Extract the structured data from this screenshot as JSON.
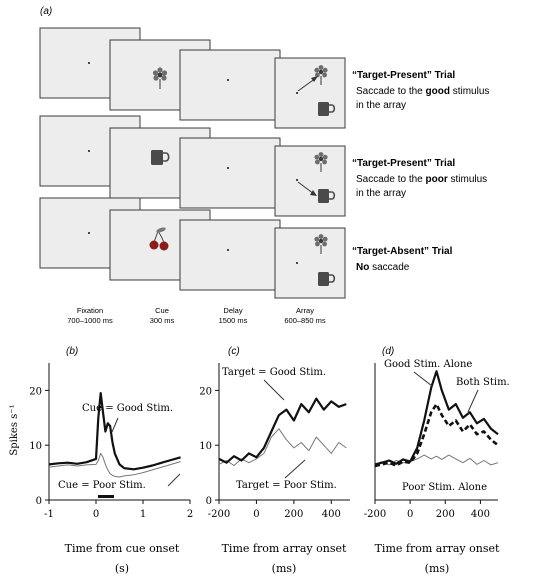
{
  "panel_a": {
    "label": "(a)",
    "trials": [
      {
        "title": "“Target-Present” Trial",
        "line1_pre": "Saccade to the ",
        "line1_bold": "good",
        "line1_post": " stimulus",
        "line2": "in the array",
        "cue": "flower-icon",
        "saccade_target": "flower"
      },
      {
        "title": "“Target-Present” Trial",
        "line1_pre": "Saccade to the ",
        "line1_bold": "poor",
        "line1_post": " stimulus",
        "line2": "in the array",
        "cue": "mug-icon",
        "saccade_target": "mug"
      },
      {
        "title": "“Target-Absent” Trial",
        "line1_pre": "",
        "line1_bold": "No",
        "line1_post": " saccade",
        "line2": "",
        "cue": "cherry-icon",
        "saccade_target": ""
      }
    ],
    "epochs": [
      {
        "name": "Fixation",
        "duration": "700–1000 ms"
      },
      {
        "name": "Cue",
        "duration": "300 ms"
      },
      {
        "name": "Delay",
        "duration": "1500 ms"
      },
      {
        "name": "Array",
        "duration": "600–850 ms"
      }
    ]
  },
  "chart_data": [
    {
      "type": "line",
      "panel": "(b)",
      "xlabel": "Time from cue onset",
      "xunit": "(s)",
      "ylabel": "Spikes s⁻¹",
      "xlim": [
        -1,
        2
      ],
      "ylim": [
        0,
        25
      ],
      "xticks": [
        -1,
        0,
        1,
        2
      ],
      "yticks": [
        0,
        10,
        20
      ],
      "annotations": [
        "Cue = Good Stim.",
        "Cue = Poor Stim."
      ],
      "x": [
        -1.0,
        -0.8,
        -0.6,
        -0.4,
        -0.2,
        0.0,
        0.05,
        0.1,
        0.15,
        0.2,
        0.25,
        0.3,
        0.35,
        0.4,
        0.5,
        0.6,
        0.8,
        1.0,
        1.2,
        1.4,
        1.6,
        1.8
      ],
      "series": [
        {
          "name": "Cue = Good Stim.",
          "style": "thick",
          "values": [
            6.5,
            6.7,
            6.8,
            6.6,
            6.9,
            7.5,
            15.0,
            19.5,
            16.0,
            12.5,
            14.0,
            13.5,
            10.5,
            8.5,
            6.5,
            5.8,
            5.6,
            5.9,
            6.3,
            6.8,
            7.3,
            7.8
          ]
        },
        {
          "name": "Cue = Poor Stim.",
          "style": "thin",
          "values": [
            6.0,
            6.2,
            6.4,
            6.2,
            6.4,
            6.5,
            7.2,
            8.5,
            7.8,
            6.5,
            5.5,
            4.8,
            4.5,
            4.3,
            4.2,
            4.4,
            4.6,
            5.0,
            5.5,
            6.0,
            6.5,
            7.0
          ]
        }
      ]
    },
    {
      "type": "line",
      "panel": "(c)",
      "xlabel": "Time from array onset",
      "xunit": "(ms)",
      "xlim": [
        -200,
        500
      ],
      "ylim": [
        0,
        25
      ],
      "xticks": [
        -200,
        0,
        200,
        400
      ],
      "yticks": [
        0,
        10,
        20
      ],
      "annotations": [
        "Target = Good Stim.",
        "Target = Poor Stim."
      ],
      "x": [
        -200,
        -160,
        -120,
        -80,
        -40,
        0,
        40,
        80,
        120,
        160,
        200,
        240,
        280,
        320,
        360,
        400,
        440,
        480
      ],
      "series": [
        {
          "name": "Target = Good Stim.",
          "style": "thick",
          "values": [
            7.5,
            6.8,
            8.0,
            7.2,
            8.5,
            7.8,
            9.5,
            12.5,
            15.5,
            16.5,
            14.5,
            17.5,
            16.0,
            18.5,
            16.5,
            18.0,
            17.0,
            17.5
          ]
        },
        {
          "name": "Target = Poor Stim.",
          "style": "thin",
          "values": [
            6.5,
            7.2,
            6.3,
            7.5,
            6.8,
            7.5,
            8.5,
            11.5,
            13.0,
            11.0,
            9.5,
            10.5,
            9.0,
            11.5,
            10.0,
            8.5,
            10.5,
            9.5
          ]
        }
      ]
    },
    {
      "type": "line",
      "panel": "(d)",
      "xlabel": "Time from array onset",
      "xunit": "(ms)",
      "xlim": [
        -200,
        500
      ],
      "ylim": [
        0,
        25
      ],
      "xticks": [
        -200,
        0,
        200,
        400
      ],
      "annotations": [
        "Good Stim. Alone",
        "Both Stim.",
        "Poor Stim. Alone"
      ],
      "x": [
        -200,
        -160,
        -120,
        -80,
        -40,
        0,
        40,
        80,
        120,
        150,
        180,
        220,
        260,
        300,
        340,
        380,
        420,
        460,
        500
      ],
      "series": [
        {
          "name": "Good Stim. Alone",
          "style": "thick",
          "values": [
            6.5,
            6.8,
            7.2,
            6.6,
            7.4,
            7.0,
            9.5,
            14.5,
            20.5,
            23.5,
            20.0,
            16.5,
            17.5,
            15.0,
            16.0,
            14.0,
            14.8,
            13.0,
            12.0
          ]
        },
        {
          "name": "Both Stim.",
          "style": "dashed",
          "values": [
            6.2,
            6.5,
            6.8,
            6.3,
            7.0,
            6.8,
            8.5,
            12.0,
            16.0,
            17.5,
            15.5,
            13.5,
            14.5,
            12.5,
            13.8,
            12.0,
            12.5,
            11.0,
            10.0
          ]
        },
        {
          "name": "Poor Stim. Alone",
          "style": "thin",
          "values": [
            6.5,
            7.0,
            6.4,
            7.2,
            6.8,
            7.0,
            7.5,
            8.2,
            7.5,
            8.0,
            7.4,
            8.2,
            7.5,
            6.8,
            7.6,
            6.5,
            7.2,
            6.4,
            6.8
          ]
        }
      ]
    }
  ]
}
